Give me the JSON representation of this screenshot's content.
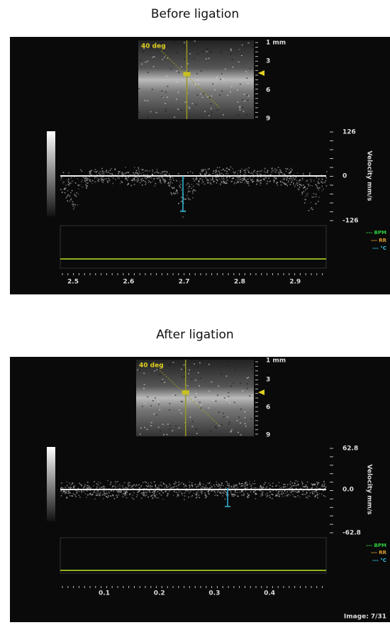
{
  "panels": [
    {
      "title": "Before ligation",
      "angle_label": "40 deg",
      "depth_labels": [
        "1 mm",
        "3",
        "6",
        "9"
      ],
      "velocity_labels": [
        "126",
        "0",
        "-126"
      ],
      "velocity_axis_title": "Velocity mm/s",
      "legend": [
        "--- BPM",
        "--- RR",
        "--- °C"
      ],
      "time_labels": [
        "2.5",
        "2.6",
        "2.7",
        "2.8",
        "2.9"
      ]
    },
    {
      "title": "After ligation",
      "angle_label": "40 deg",
      "depth_labels": [
        "1 mm",
        "3",
        "6",
        "9"
      ],
      "velocity_labels": [
        "62.8",
        "0.0",
        "-62.8"
      ],
      "velocity_axis_title": "Velocity mm/s",
      "legend": [
        "--- BPM",
        "--- RR",
        "--- °C"
      ],
      "time_labels": [
        "0.1",
        "0.2",
        "0.3",
        "0.4"
      ]
    }
  ],
  "footer": "Image: 7/31"
}
